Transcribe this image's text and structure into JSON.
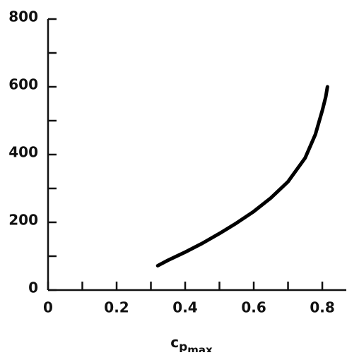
{
  "chart_data": {
    "type": "line",
    "xlabel": {
      "base": "c",
      "sub": "p",
      "subsub": "max"
    },
    "x": [
      0.32,
      0.35,
      0.4,
      0.45,
      0.5,
      0.55,
      0.6,
      0.65,
      0.7,
      0.75,
      0.78,
      0.8,
      0.81,
      0.815
    ],
    "series": [
      {
        "color": "#000000",
        "values": [
          72,
          88,
          112,
          138,
          167,
          198,
          232,
          272,
          320,
          390,
          460,
          530,
          570,
          600
        ]
      }
    ],
    "xlim": [
      0,
      0.87
    ],
    "xticks": [
      0,
      0.2,
      0.4,
      0.6,
      0.8
    ],
    "xminorticks": [
      0.1,
      0.3,
      0.5,
      0.7
    ],
    "ylim": [
      0,
      800
    ],
    "yticks": [
      0,
      200,
      400,
      600,
      800
    ],
    "yminorticks": [
      100,
      300,
      500,
      700
    ]
  }
}
